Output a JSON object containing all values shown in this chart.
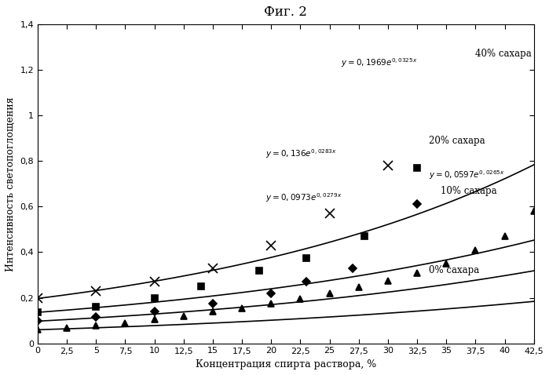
{
  "title": "Фиг. 2",
  "xlabel": "Концентрация спирта раствора, %",
  "ylabel": "Интенсивность светопоглощения",
  "xlim": [
    0,
    42.5
  ],
  "ylim": [
    0,
    1.4
  ],
  "xticks": [
    0,
    2.5,
    5,
    7.5,
    10,
    12.5,
    15,
    17.5,
    20,
    22.5,
    25,
    27.5,
    30,
    32.5,
    35,
    37.5,
    40,
    42.5
  ],
  "yticks": [
    0,
    0.2,
    0.4,
    0.6,
    0.8,
    1.0,
    1.2,
    1.4
  ],
  "curves": [
    {
      "label": "40% сахара",
      "a": 0.1969,
      "b": 0.0325,
      "marker": "x",
      "color": "#000000",
      "equation": "y = 0,1969e°0,°³²µˣ",
      "eq_text": "y = 0,1969e^{0,0325x}",
      "eq_x": 27,
      "eq_y": 1.25,
      "lbl_x": 38,
      "lbl_y": 1.28,
      "data_x": [
        0,
        5,
        10,
        15,
        20,
        25,
        30
      ],
      "data_y": [
        0.197,
        0.23,
        0.27,
        0.33,
        0.43,
        0.57,
        0.78
      ]
    },
    {
      "label": "20% сахара",
      "a": 0.136,
      "b": 0.0283,
      "marker": "s",
      "color": "#000000",
      "eq_text": "y = 0,136e^{0,0283x}",
      "eq_x": 19,
      "eq_y": 0.82,
      "lbl_x": 35,
      "lbl_y": 0.88,
      "data_x": [
        0,
        5,
        10,
        14,
        19,
        23,
        28,
        32.5
      ],
      "data_y": [
        0.136,
        0.16,
        0.2,
        0.25,
        0.32,
        0.375,
        0.47,
        0.77
      ]
    },
    {
      "label": "10% сахара",
      "a": 0.0973,
      "b": 0.0279,
      "marker": "D",
      "color": "#000000",
      "eq_text": "y = 0,0973e^{0,0279x}",
      "eq_x": 19,
      "eq_y": 0.65,
      "lbl_x": 34,
      "lbl_y": 0.66,
      "data_x": [
        0,
        5,
        10,
        15,
        20,
        23,
        27,
        32.5
      ],
      "data_y": [
        0.097,
        0.115,
        0.14,
        0.175,
        0.22,
        0.27,
        0.33,
        0.61
      ]
    },
    {
      "label": "0% сахара",
      "a": 0.0597,
      "b": 0.0265,
      "marker": "^",
      "color": "#000000",
      "eq_text": "y = 0,0597e^{0,0265x}",
      "eq_x": 34,
      "eq_y": 0.74,
      "lbl_x": 34,
      "lbl_y": 0.32,
      "data_x": [
        0,
        2.5,
        5,
        7.5,
        10,
        12.5,
        15,
        17.5,
        20,
        22.5,
        25,
        27.5,
        30,
        32.5,
        35,
        37.5,
        40,
        42.5
      ],
      "data_y": [
        0.06,
        0.068,
        0.078,
        0.09,
        0.105,
        0.12,
        0.14,
        0.155,
        0.175,
        0.195,
        0.22,
        0.245,
        0.275,
        0.31,
        0.35,
        0.41,
        0.47,
        0.58
      ]
    }
  ]
}
